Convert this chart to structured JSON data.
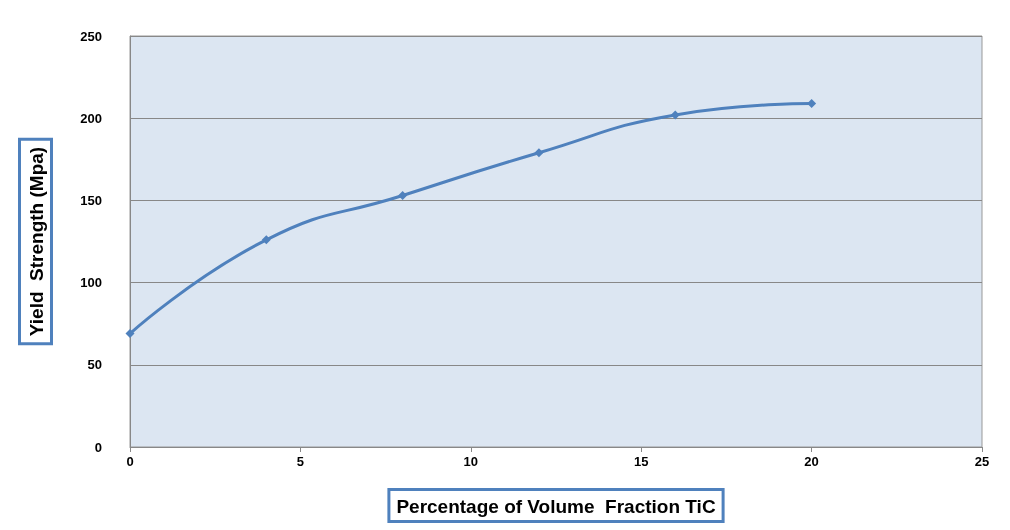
{
  "chart_data": {
    "type": "line",
    "xlabel": "Percentage of Volume  Fraction TiC",
    "ylabel": "Yield  Strength (Mpa)",
    "x": [
      0,
      4,
      8,
      12,
      16,
      20
    ],
    "series": [
      {
        "color": "#4f81bd",
        "values": [
          69,
          126,
          153,
          179,
          202,
          209
        ]
      }
    ],
    "xlim": [
      0,
      25
    ],
    "xticks": [
      0,
      5,
      10,
      15,
      20,
      25
    ],
    "ylim": [
      0,
      250
    ],
    "yticks": [
      0,
      50,
      100,
      150,
      200,
      250
    ],
    "grid": "y",
    "marker": "diamond",
    "line_style": "solid"
  }
}
